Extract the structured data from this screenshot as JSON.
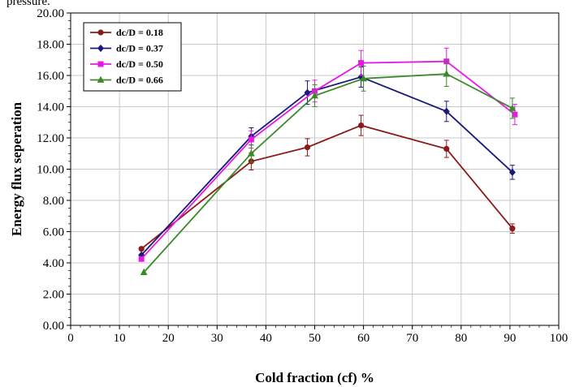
{
  "caption_fragment": "pressure.",
  "chart_data": {
    "type": "line",
    "xlabel": "Cold fraction (cf) %",
    "ylabel": "Energy flux seperation",
    "xlim": [
      0,
      100
    ],
    "ylim": [
      0,
      20
    ],
    "x_ticks": [
      "0",
      "10",
      "20",
      "30",
      "40",
      "50",
      "60",
      "70",
      "80",
      "90",
      "100"
    ],
    "y_ticks": [
      "0.00",
      "2.00",
      "4.00",
      "6.00",
      "8.00",
      "10.00",
      "12.00",
      "14.00",
      "16.00",
      "18.00",
      "20.00"
    ],
    "grid": true,
    "legend_position": "top-left",
    "series": [
      {
        "name": "dc/D = 0.18",
        "color": "#8b1a1a",
        "marker": "circle",
        "points": [
          [
            14.5,
            4.9
          ],
          [
            37,
            10.5
          ],
          [
            48.5,
            11.4
          ],
          [
            59.5,
            12.8
          ],
          [
            77,
            11.3
          ],
          [
            90.5,
            6.2
          ]
        ],
        "errors": [
          0,
          0.55,
          0.55,
          0.65,
          0.55,
          0.3
        ]
      },
      {
        "name": "dc/D = 0.37",
        "color": "#1a1a7a",
        "marker": "diamond",
        "points": [
          [
            14.5,
            4.5
          ],
          [
            37,
            12.1
          ],
          [
            48.5,
            14.9
          ],
          [
            59.5,
            15.9
          ],
          [
            77,
            13.7
          ],
          [
            90.5,
            9.8
          ]
        ],
        "errors": [
          0,
          0.55,
          0.75,
          0.65,
          0.65,
          0.45
        ]
      },
      {
        "name": "dc/D = 0.50",
        "color": "#e619e6",
        "marker": "square",
        "points": [
          [
            14.5,
            4.25
          ],
          [
            37,
            11.9
          ],
          [
            50,
            15.0
          ],
          [
            59.5,
            16.8
          ],
          [
            77,
            16.9
          ],
          [
            91,
            13.5
          ]
        ],
        "errors": [
          0,
          0.55,
          0.7,
          0.8,
          0.85,
          0.65
        ]
      },
      {
        "name": "dc/D = 0.66",
        "color": "#3a8a2a",
        "marker": "triangle",
        "points": [
          [
            15,
            3.4
          ],
          [
            37,
            11.0
          ],
          [
            50,
            14.7
          ],
          [
            60,
            15.8
          ],
          [
            77,
            16.1
          ],
          [
            90.5,
            13.9
          ]
        ],
        "errors": [
          0,
          0.55,
          0.7,
          0.8,
          0.8,
          0.65
        ]
      }
    ]
  }
}
